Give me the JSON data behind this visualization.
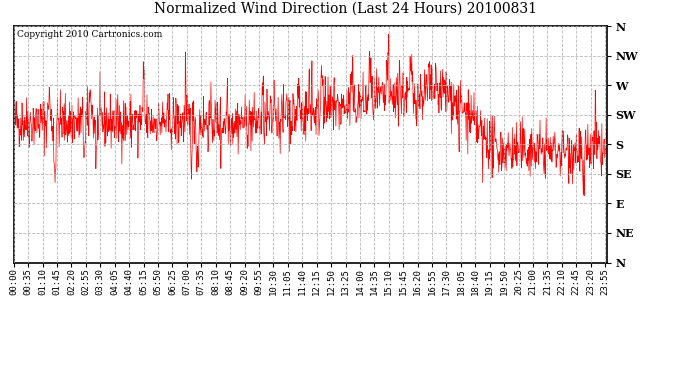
{
  "title": "Normalized Wind Direction (Last 24 Hours) 20100831",
  "copyright": "Copyright 2010 Cartronics.com",
  "line_color": "#ff0000",
  "bg_color": "#ffffff",
  "grid_color": "#b0b0b0",
  "ytick_labels": [
    "N",
    "NW",
    "W",
    "SW",
    "S",
    "SE",
    "E",
    "NE",
    "N"
  ],
  "ytick_values": [
    1.0,
    0.875,
    0.75,
    0.625,
    0.5,
    0.375,
    0.25,
    0.125,
    0.0
  ],
  "xtick_labels": [
    "00:00",
    "00:35",
    "01:10",
    "01:45",
    "02:20",
    "02:55",
    "03:30",
    "04:05",
    "04:40",
    "05:15",
    "05:50",
    "06:25",
    "07:00",
    "07:35",
    "08:10",
    "08:45",
    "09:20",
    "09:55",
    "10:30",
    "11:05",
    "11:40",
    "12:15",
    "12:50",
    "13:25",
    "14:00",
    "14:35",
    "15:10",
    "15:45",
    "16:20",
    "16:55",
    "17:30",
    "18:05",
    "18:40",
    "19:15",
    "19:50",
    "20:25",
    "21:00",
    "21:35",
    "22:10",
    "22:45",
    "23:20",
    "23:55"
  ],
  "ylim": [
    0.0,
    1.0
  ],
  "seed": 42,
  "n_points": 1440,
  "figwidth": 6.9,
  "figheight": 3.75,
  "dpi": 100
}
